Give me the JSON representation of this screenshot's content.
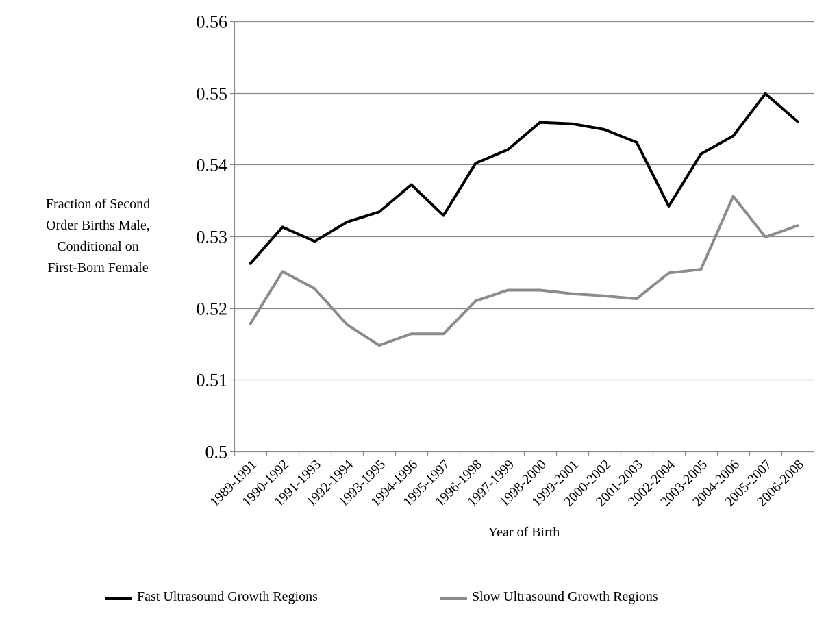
{
  "chart_data": {
    "type": "line",
    "title": "",
    "xlabel": "Year of Birth",
    "ylabel_lines": [
      "Fraction of Second",
      "Order Births Male,",
      "Conditional on",
      "First-Born Female"
    ],
    "ylim": [
      0.5,
      0.56
    ],
    "yticks": [
      "0.5",
      "0.51",
      "0.52",
      "0.53",
      "0.54",
      "0.55",
      "0.56"
    ],
    "ytick_values": [
      0.5,
      0.51,
      0.52,
      0.53,
      0.54,
      0.55,
      0.56
    ],
    "grid": true,
    "legend_position": "bottom",
    "categories": [
      "1989-1991",
      "1990-1992",
      "1991-1993",
      "1992-1994",
      "1993-1995",
      "1994-1996",
      "1995-1997",
      "1996-1998",
      "1997-1999",
      "1998-2000",
      "1999-2001",
      "2000-2002",
      "2001-2003",
      "2002-2004",
      "2003-2005",
      "2004-2006",
      "2005-2007",
      "2006-2008"
    ],
    "series": [
      {
        "name": "Fast Ultrasound Growth Regions",
        "color": "#000000",
        "values": [
          0.5262,
          0.5313,
          0.5293,
          0.532,
          0.5334,
          0.5372,
          0.5329,
          0.5402,
          0.5421,
          0.5459,
          0.5457,
          0.5449,
          0.5431,
          0.5342,
          0.5415,
          0.544,
          0.5499,
          0.546
        ]
      },
      {
        "name": "Slow Ultrasound Growth Regions",
        "color": "#8c8c8c",
        "values": [
          0.5178,
          0.5251,
          0.5227,
          0.5177,
          0.5148,
          0.5164,
          0.5164,
          0.521,
          0.5225,
          0.5225,
          0.522,
          0.5217,
          0.5213,
          0.5249,
          0.5254,
          0.5356,
          0.5299,
          0.5315
        ]
      }
    ]
  }
}
